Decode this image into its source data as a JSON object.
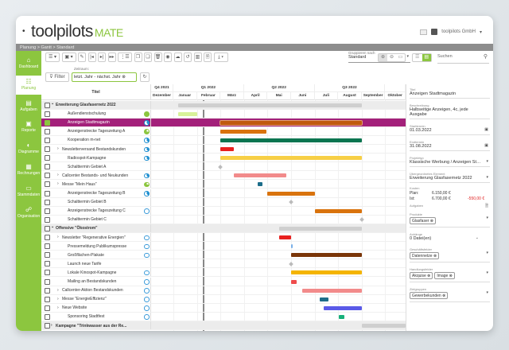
{
  "header": {
    "logo_main": "toolpilots",
    "logo_sub": "MATE",
    "company": "toolpilots GmbH",
    "back_icon": "dot-icon"
  },
  "breadcrumb": "Planung > Gantt > Standard",
  "sidebar": {
    "items": [
      {
        "label": "Dashboard",
        "icon": "⌂"
      },
      {
        "label": "Planung",
        "icon": "☷",
        "active": true
      },
      {
        "label": "Aufgaben",
        "icon": "▤"
      },
      {
        "label": "Reporte",
        "icon": "▣"
      },
      {
        "label": "Diagramme",
        "icon": "◐"
      },
      {
        "label": "Rechnungen",
        "icon": "▦"
      },
      {
        "label": "Stammdaten",
        "icon": "▭"
      },
      {
        "label": "Organisation",
        "icon": "☍"
      }
    ]
  },
  "toolbar": {
    "buttons": [
      "☰ ▾",
      "▣ ▾",
      "✎",
      "|◂",
      "▸|",
      "▸▸",
      "⋮☰ ▾",
      "❐",
      "❏",
      "🗑",
      "◉",
      "☁",
      "↺",
      "▥",
      "🗎",
      "⤓ ▾"
    ],
    "group_label": "Gruppieren nach",
    "group_value": "Standard",
    "zoom": [
      "⊕",
      "⊖",
      "▭"
    ],
    "search_placeholder": "Suchen"
  },
  "filter": {
    "label": "Filter",
    "zeitraum_label": "Zeitraum:",
    "zeitraum_value": "letzt. Jahr - nächst. Jahr"
  },
  "gantt": {
    "title_header": "Titel",
    "quarters": [
      {
        "label": "Q4 2021",
        "from": "2021-12",
        "to": "2021-12"
      },
      {
        "label": "Q1 2022",
        "from": "2022-01",
        "to": "2022-03"
      },
      {
        "label": "Q2 2022",
        "from": "2022-04",
        "to": "2022-06"
      },
      {
        "label": "Q3 2022",
        "from": "2022-07",
        "to": "2022-09"
      },
      {
        "label": "",
        "from": "2022-10",
        "to": "2022-10"
      }
    ],
    "months": [
      "Dezember",
      "Januar",
      "Februar",
      "März",
      "April",
      "Mai",
      "Juni",
      "Juli",
      "August",
      "September",
      "Oktober"
    ],
    "today_label": "heute",
    "today": "2022-02-08",
    "rows": [
      {
        "title": "Erweiterung Glasfasernetz 2022",
        "group": true,
        "expanded": true,
        "start": "2022-01-07",
        "end": "2022-08-31",
        "color": "#cfcfcf"
      },
      {
        "title": "Außendienstschulung",
        "status": "full",
        "start": "2022-01-07",
        "end": "2022-01-31",
        "color": "#d8f29a"
      },
      {
        "title": "Anzeigen Stadtmagazin",
        "status": "bp",
        "selected": true,
        "start": "2022-03-01",
        "end": "2022-08-31",
        "color": "#c0590e"
      },
      {
        "title": "Anzeigenstrecke Tageszeitung A",
        "status": "gp",
        "start": "2022-03-01",
        "end": "2022-04-29",
        "color": "#d9730d"
      },
      {
        "title": "Kooperation m-net",
        "status": "bp",
        "start": "2022-03-01",
        "end": "2022-08-31",
        "color": "#0a7550"
      },
      {
        "title": "Newsletterversand Bestandskunden",
        "status": "bp",
        "expand": true,
        "start": "2022-03-01",
        "end": "2022-03-18",
        "color": "#e8201e"
      },
      {
        "title": "Radiospot-Kampagne",
        "status": "bp",
        "start": "2022-03-01",
        "end": "2022-08-31",
        "color": "#f7cf45"
      },
      {
        "title": "Schalttermin Gebiet A",
        "milestone": "2022-03-01"
      },
      {
        "title": "Callcenter Bestands- und Neukunden",
        "status": "bp",
        "expand": true,
        "start": "2022-03-19",
        "end": "2022-05-25",
        "color": "#f28b8b"
      },
      {
        "title": "Messe \"Mein Haus\"",
        "status": "gp",
        "expand": true,
        "start": "2022-04-18",
        "end": "2022-04-24",
        "color": "#1c6d8a"
      },
      {
        "title": "Anzeigenstrecke Tageszeitung B",
        "status": "bp",
        "start": "2022-05-01",
        "end": "2022-06-30",
        "color": "#d9730d"
      },
      {
        "title": "Schalttermin Gebiet B",
        "milestone": "2022-06-01"
      },
      {
        "title": "Anzeigenstrecke Tageszeitung C",
        "status": "empty",
        "start": "2022-07-01",
        "end": "2022-08-31",
        "color": "#d9730d"
      },
      {
        "title": "Schalttermin Gebiet C",
        "milestone": "2022-09-01"
      },
      {
        "title": "Offensive \"Ökostrom\"",
        "group": true,
        "expanded": true,
        "start": "2022-05-16",
        "end": "2022-08-31",
        "color": "#cfcfcf"
      },
      {
        "title": "Newsletter \"Regenerative Energien\"",
        "status": "empty",
        "expand": true,
        "start": "2022-05-16",
        "end": "2022-05-31",
        "color": "#e8201e"
      },
      {
        "title": "Pressemeldung Publikumspresse",
        "status": "empty",
        "start": "2022-06-01",
        "end": "2022-06-02",
        "color": "#7ab0e8"
      },
      {
        "title": "Großflächen-Plakate",
        "status": "empty",
        "start": "2022-06-01",
        "end": "2022-08-31",
        "color": "#7a3508"
      },
      {
        "title": "Launch neue Tarife",
        "milestone": "2022-06-01"
      },
      {
        "title": "Lokale Kinospot-Kampagne",
        "status": "empty",
        "start": "2022-06-01",
        "end": "2022-08-31",
        "color": "#f4b400"
      },
      {
        "title": "Mailing an Bestandskunden",
        "status": "empty",
        "start": "2022-06-01",
        "end": "2022-06-07",
        "color": "#ef4c4c"
      },
      {
        "title": "Callcenter-Aktion Bestandskunden",
        "status": "empty",
        "expand": true,
        "start": "2022-06-15",
        "end": "2022-08-31",
        "color": "#f28b8b"
      },
      {
        "title": "Messe \"EnergieEffizienz\"",
        "status": "empty",
        "expand": true,
        "start": "2022-07-08",
        "end": "2022-07-18",
        "color": "#1c6d8a"
      },
      {
        "title": "Neue Website",
        "status": "empty",
        "expand": true,
        "start": "2022-07-13",
        "end": "2022-08-31",
        "color": "#5a5ae8"
      },
      {
        "title": "Sponsoring Stadtfest",
        "status": "empty",
        "start": "2022-08-02",
        "end": "2022-08-08",
        "color": "#17b07a"
      },
      {
        "title": "Kampagne \"Trinkwasser aus der Re...",
        "group": true,
        "expanded": false,
        "start": "2022-09-01",
        "end": "2022-10-31",
        "color": "#cfcfcf"
      }
    ]
  },
  "panel": {
    "titel_label": "Titel",
    "titel": "Anzeigen Stadtmagazin",
    "beschreibung_label": "Beschreibung",
    "beschreibung": "Halbseitige Anzeigen, 4c, jede Ausgabe",
    "start_label": "Starttermin",
    "start": "01.03.2022",
    "end_label": "Endtermin",
    "end": "31.08.2022",
    "projekttyp_label": "Projekttyp",
    "projekttyp": "Klassische Werbung / Anzeigen Stadt-...",
    "parent_label": "Übergeordnetes Element",
    "parent": "Erweiterung Glasfasernetz 2022",
    "kosten_label": "Kosten",
    "plan_label": "Plan:",
    "plan": "6.150,00 €",
    "ist_label": "Ist:",
    "ist": "6.700,00 €",
    "diff": "-550,00 €",
    "aufgaben_label": "Aufgaben",
    "produkte_label": "Produkte",
    "produkte": [
      "Glasfaser"
    ],
    "anhaenge_label": "Anhänge",
    "anhaenge": "0 Datei(en)",
    "geschaeftsfelder_label": "Geschäftsfelder",
    "geschaeftsfelder": [
      "Datennetze"
    ],
    "handlungsfelder_label": "Handlungsfelder",
    "handlungsfelder": [
      "Akquise",
      "Image"
    ],
    "zielgruppen_label": "Zielgruppen",
    "zielgruppen": [
      "Gewerbekunden"
    ]
  },
  "colors": {
    "brand": "#8cc63f",
    "selected_row": "#a3207a",
    "cost_negative": "#e02020"
  }
}
